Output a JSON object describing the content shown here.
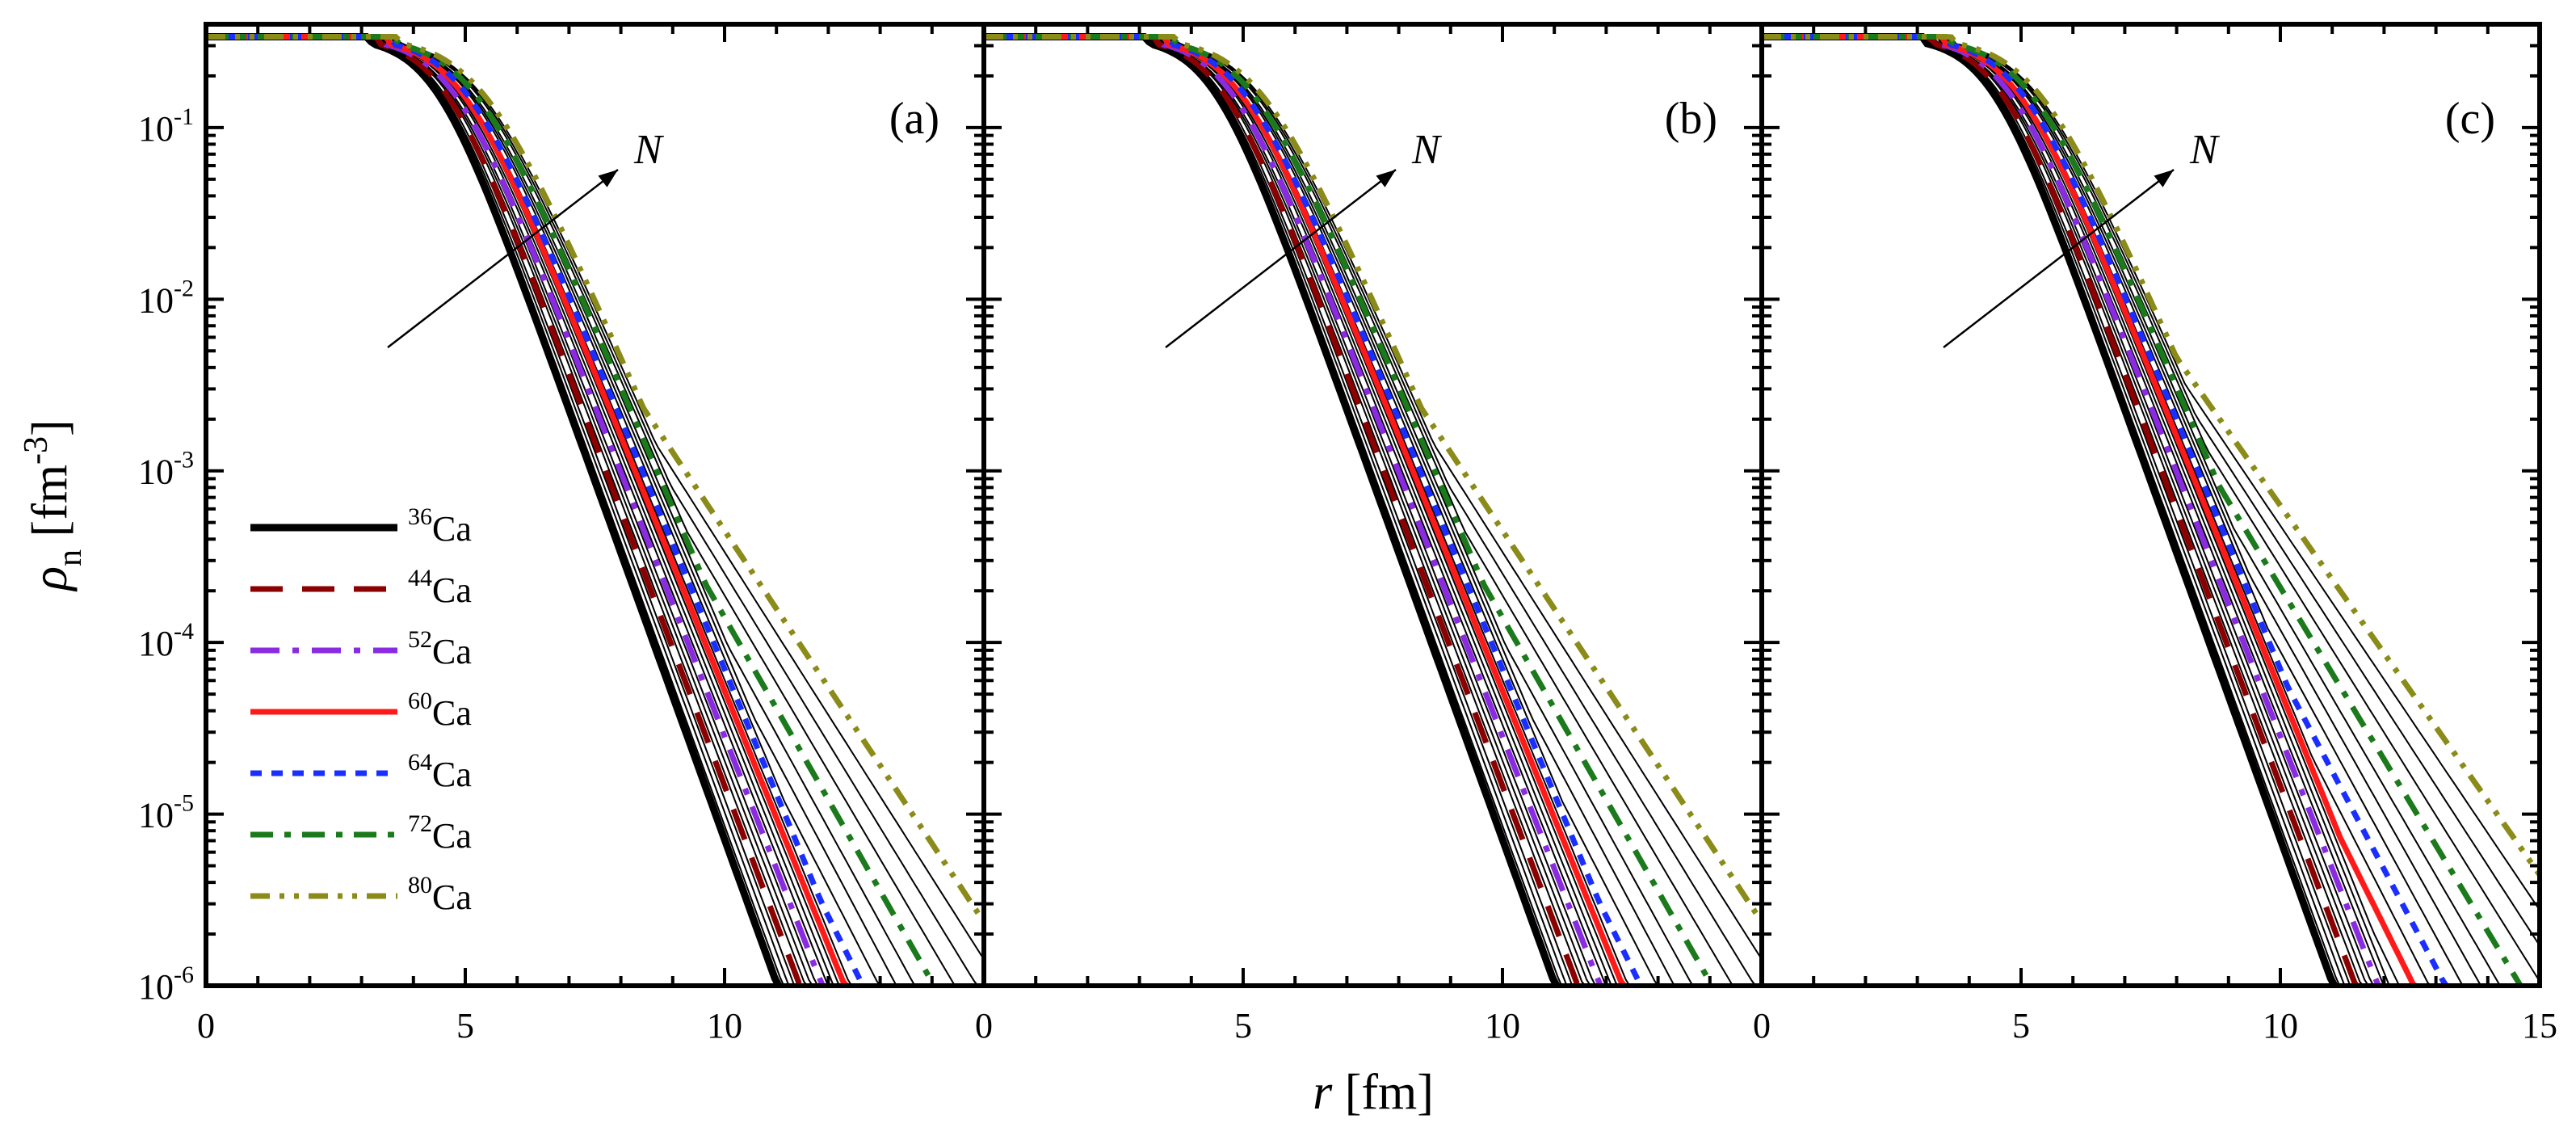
{
  "chart_data": {
    "type": "line",
    "panels": [
      {
        "label": "(a)",
        "xtick_labels": [
          "0",
          "5",
          "10",
          ""
        ]
      },
      {
        "label": "(b)",
        "xtick_labels": [
          "0",
          "5",
          "10",
          ""
        ]
      },
      {
        "label": "(c)",
        "xtick_labels": [
          "0",
          "5",
          "10",
          "15"
        ]
      }
    ],
    "xlabel_symbol": "r",
    "xlabel_unit": "[fm]",
    "ylabel_symbol": "ρ",
    "ylabel_sub": "n",
    "ylabel_unit": "[fm",
    "ylabel_unit_exp": "-3",
    "ylabel_unit_close": "]",
    "xlim": [
      0,
      15
    ],
    "yscale": "log",
    "ylim": [
      1e-06,
      0.4
    ],
    "ytick_labels": [
      {
        "base": "10",
        "exp": "-1"
      },
      {
        "base": "10",
        "exp": "-2"
      },
      {
        "base": "10",
        "exp": "-3"
      },
      {
        "base": "10",
        "exp": "-4"
      },
      {
        "base": "10",
        "exp": "-5"
      },
      {
        "base": "10",
        "exp": "-6"
      }
    ],
    "arrow_label": "N",
    "highlighted_series": [
      {
        "mass": "36",
        "element": "Ca",
        "color": "#000000",
        "style": "solid",
        "A": 36,
        "n_frac": 0
      },
      {
        "mass": "44",
        "element": "Ca",
        "color": "#8b0000",
        "style": "dashed",
        "A": 44,
        "n_frac": 0.2
      },
      {
        "mass": "52",
        "element": "Ca",
        "color": "#8a2be2",
        "style": "dashdot",
        "A": 52,
        "n_frac": 0.4
      },
      {
        "mass": "60",
        "element": "Ca",
        "color": "#ff1a1a",
        "style": "solid",
        "A": 60,
        "n_frac": 0.6
      },
      {
        "mass": "64",
        "element": "Ca",
        "color": "#1a2eff",
        "style": "dotted",
        "A": 64,
        "n_frac": 0.7
      },
      {
        "mass": "72",
        "element": "Ca",
        "color": "#1b7a1b",
        "style": "dashdotted",
        "A": 72,
        "n_frac": 0.9
      },
      {
        "mass": "80",
        "element": "Ca",
        "color": "#8b8b1a",
        "style": "dashdotdot",
        "A": 80,
        "n_frac": 1.0
      }
    ],
    "thin_series_A": [
      38,
      40,
      42,
      46,
      48,
      50,
      54,
      56,
      58,
      62,
      66,
      68,
      70,
      74,
      76,
      78
    ],
    "panel_tail_factor": [
      1.0,
      1.0,
      1.06
    ]
  }
}
